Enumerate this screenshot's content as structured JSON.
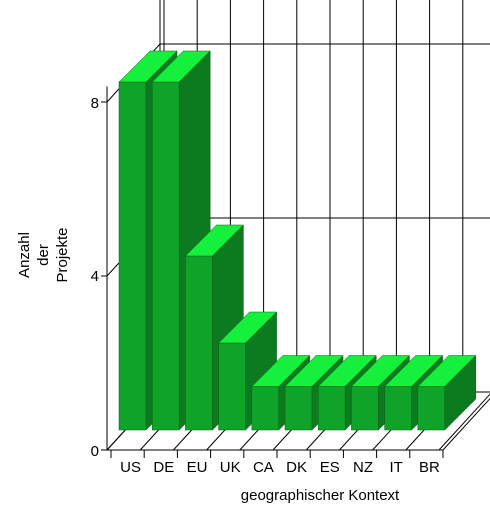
{
  "chart_data": {
    "type": "bar",
    "categories": [
      "US",
      "DE",
      "EU",
      "UK",
      "CA",
      "DK",
      "ES",
      "NZ",
      "IT",
      "BR"
    ],
    "values": [
      8,
      8,
      4,
      2,
      1,
      1,
      1,
      1,
      1,
      1
    ],
    "xlabel": "geographischer Kontext",
    "ylabel_lines": [
      "Anzahl",
      "der",
      "Projekte"
    ],
    "yticks": [
      "0",
      "4",
      "8"
    ],
    "ylim": [
      0,
      9
    ],
    "grid": true,
    "three_d": true,
    "colors": {
      "front": "#0fa32a",
      "top": "#14f03c",
      "side": "#0c7a1f",
      "grid": "#000000"
    }
  }
}
